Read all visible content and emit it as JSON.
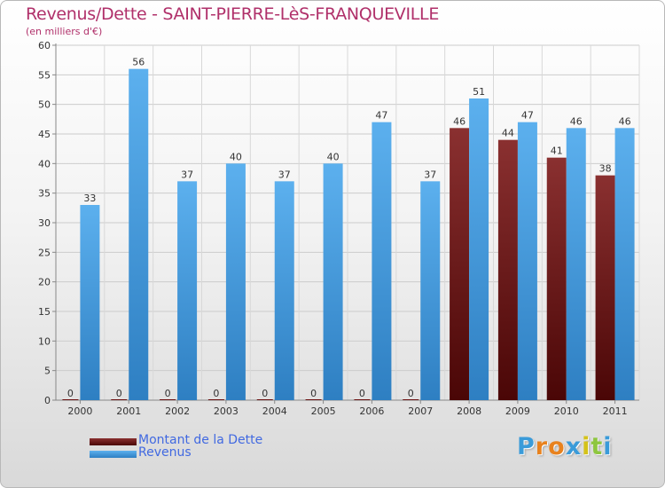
{
  "chart_data": {
    "type": "bar",
    "title": "Revenus/Dette - SAINT-PIERRE-LèS-FRANQUEVILLE",
    "subtitle": "(en milliers d'€)",
    "categories": [
      "2000",
      "2001",
      "2002",
      "2003",
      "2004",
      "2005",
      "2006",
      "2007",
      "2008",
      "2009",
      "2010",
      "2011"
    ],
    "series": [
      {
        "name": "Montant de la Dette",
        "color": "#6b1010",
        "values": [
          0,
          0,
          0,
          0,
          0,
          0,
          0,
          0,
          46,
          44,
          41,
          38
        ]
      },
      {
        "name": "Revenus",
        "color": "#4ba3e6",
        "values": [
          33,
          56,
          37,
          40,
          37,
          40,
          47,
          37,
          51,
          47,
          46,
          46
        ]
      }
    ],
    "ylim": [
      0,
      60
    ],
    "yticks": [
      0,
      5,
      10,
      15,
      20,
      25,
      30,
      35,
      40,
      45,
      50,
      55,
      60
    ],
    "grid": true,
    "legend": "bottom-left"
  },
  "legend": {
    "items": [
      {
        "label": "Montant de la Dette",
        "color": "#6b1010"
      },
      {
        "label": "Revenus",
        "color": "#4ba3e6"
      }
    ]
  },
  "logo": {
    "letters": [
      "P",
      "r",
      "o",
      "x",
      "i",
      "t",
      "i"
    ],
    "colors": [
      "#3a9bd9",
      "#e8821e",
      "#e8821e",
      "#3a9bd9",
      "#d4c21a",
      "#8ec63f",
      "#3a9bd9"
    ]
  }
}
